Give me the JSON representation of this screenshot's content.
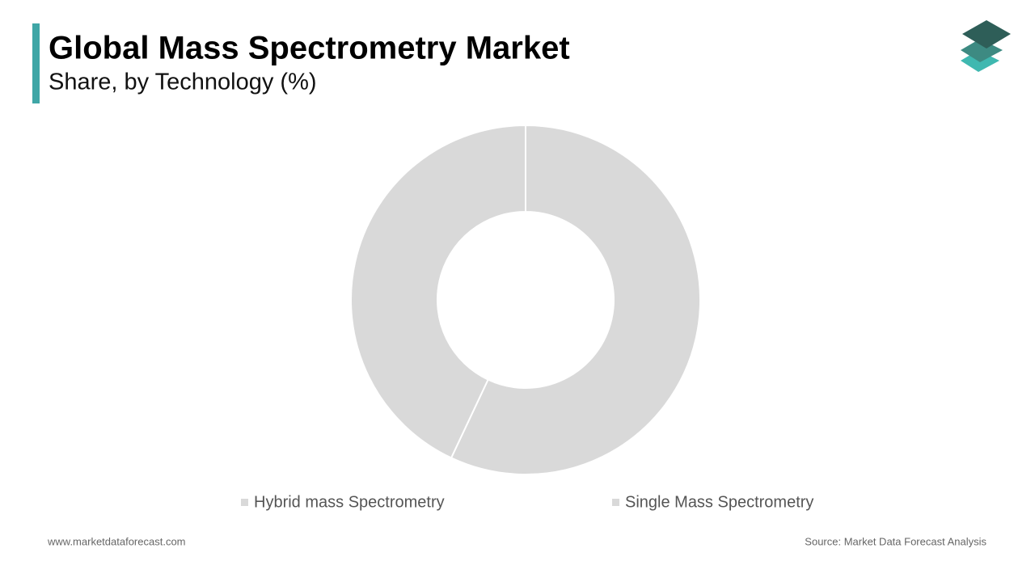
{
  "chart_data": {
    "type": "pie",
    "title": "Global Mass Spectrometry Market",
    "subtitle": "Share, by Technology (%)",
    "categories": [
      "Hybrid mass Spectrometry",
      "Single Mass Spectrometry"
    ],
    "values": [
      57,
      43
    ],
    "colors": [
      "#d9d9d9",
      "#d9d9d9"
    ],
    "donut": true
  },
  "footer": {
    "website": "www.marketdataforecast.com",
    "source": "Source: Market Data Forecast Analysis"
  }
}
